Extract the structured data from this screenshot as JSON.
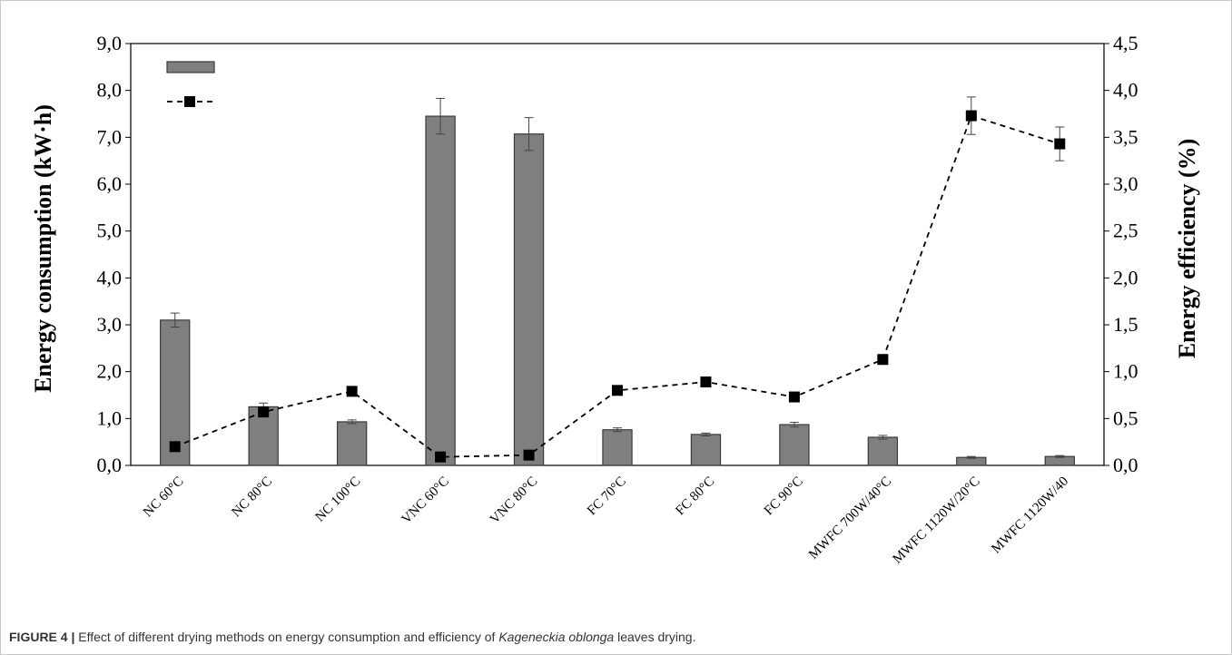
{
  "caption": {
    "label": "FIGURE 4 |",
    "text_before": " Effect of different drying methods on energy consumption and efficiency of ",
    "italic": "Kageneckia oblonga",
    "text_after": " leaves drying."
  },
  "chart_data": {
    "type": "bar",
    "categories": [
      "NC 60°C",
      "NC 80°C",
      "NC 100°C",
      "VNC 60°C",
      "VNC 80°C",
      "FC 70°C",
      "FC 80°C",
      "FC 90°C",
      "MWFC 700W/40°C",
      "MWFC 1120W/20°C",
      "MWFC 1120W/40"
    ],
    "ylabel": "Energy consumption (kW·h)",
    "y2label": "Energy efficiency (%)",
    "ylim": [
      0,
      9
    ],
    "y2lim": [
      0,
      4.5
    ],
    "yticks": [
      "0,0",
      "1,0",
      "2,0",
      "3,0",
      "4,0",
      "5,0",
      "6,0",
      "7,0",
      "8,0",
      "9,0"
    ],
    "y2ticks": [
      "0,0",
      "0,5",
      "1,0",
      "1,5",
      "2,0",
      "2,5",
      "3,0",
      "3,5",
      "4,0",
      "4,5"
    ],
    "series": [
      {
        "type": "bar",
        "axis": "left",
        "values": [
          3.1,
          1.25,
          0.93,
          7.45,
          7.07,
          0.76,
          0.66,
          0.87,
          0.6,
          0.17,
          0.19
        ],
        "errors": [
          0.15,
          0.08,
          0.04,
          0.38,
          0.35,
          0.04,
          0.03,
          0.05,
          0.04,
          0.02,
          0.02
        ],
        "color": "#7f7f7f"
      },
      {
        "type": "line",
        "axis": "right",
        "style": "dashed",
        "marker": "square",
        "values": [
          0.2,
          0.57,
          0.79,
          0.09,
          0.11,
          0.8,
          0.89,
          0.73,
          1.13,
          3.73,
          3.43
        ],
        "errors": [
          0,
          0,
          0,
          0,
          0,
          0,
          0,
          0,
          0,
          0.2,
          0.18
        ],
        "color": "#000000"
      }
    ],
    "legend": {
      "position": "top-left",
      "entries": [
        "",
        ""
      ]
    },
    "grid": false
  }
}
